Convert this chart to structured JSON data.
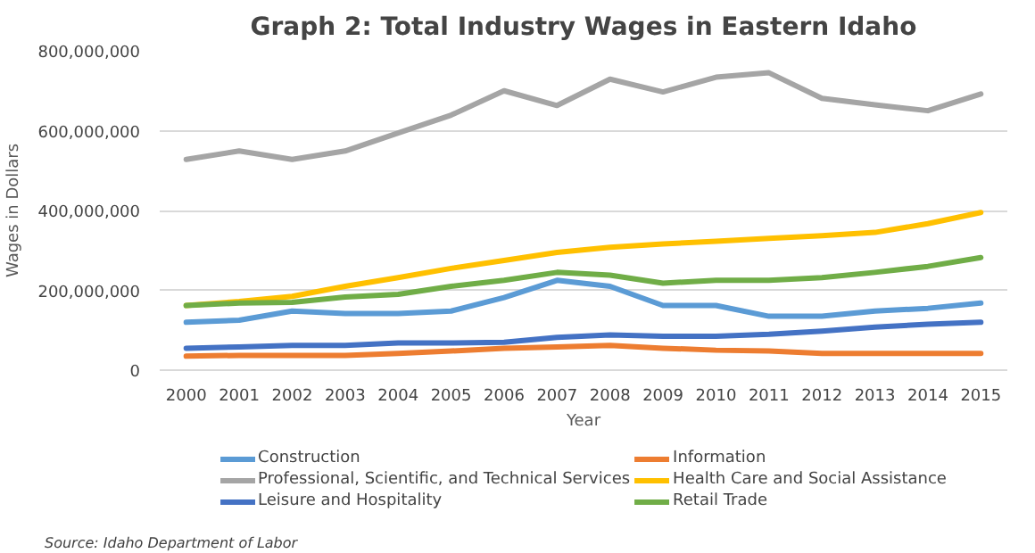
{
  "chart_data": {
    "type": "line",
    "title": "Graph 2: Total Industry Wages in Eastern Idaho",
    "xlabel": "Year",
    "ylabel": "Wages in Dollars",
    "categories": [
      "2000",
      "2001",
      "2002",
      "2003",
      "2004",
      "2005",
      "2006",
      "2007",
      "2008",
      "2009",
      "2010",
      "2011",
      "2012",
      "2013",
      "2014",
      "2015"
    ],
    "series": [
      {
        "name": "Construction",
        "color": "#5b9bd5",
        "values": [
          120000000,
          125000000,
          148000000,
          142000000,
          142000000,
          148000000,
          182000000,
          225000000,
          210000000,
          162000000,
          162000000,
          135000000,
          135000000,
          148000000,
          155000000,
          168000000
        ]
      },
      {
        "name": "Information",
        "color": "#ed7d31",
        "values": [
          35000000,
          37000000,
          37000000,
          37000000,
          42000000,
          48000000,
          55000000,
          58000000,
          62000000,
          55000000,
          50000000,
          48000000,
          42000000,
          42000000,
          42000000,
          42000000
        ]
      },
      {
        "name": "Professional, Scientific, and Technical Services",
        "color": "#a5a5a5",
        "values": [
          528000000,
          549000000,
          528000000,
          549000000,
          594000000,
          639000000,
          700000000,
          663000000,
          729000000,
          697000000,
          734000000,
          745000000,
          681000000,
          665000000,
          650000000,
          692000000
        ]
      },
      {
        "name": "Health Care and Social Assistance",
        "color": "#ffc000",
        "values": [
          162000000,
          172000000,
          185000000,
          210000000,
          232000000,
          255000000,
          275000000,
          295000000,
          308000000,
          316000000,
          323000000,
          330000000,
          337000000,
          345000000,
          367000000,
          395000000
        ]
      },
      {
        "name": "Leisure and Hospitality",
        "color": "#4472c4",
        "values": [
          55000000,
          58000000,
          62000000,
          62000000,
          68000000,
          68000000,
          70000000,
          82000000,
          88000000,
          85000000,
          85000000,
          90000000,
          98000000,
          108000000,
          115000000,
          120000000
        ]
      },
      {
        "name": "Retail Trade",
        "color": "#70ad47",
        "values": [
          162000000,
          168000000,
          170000000,
          183000000,
          190000000,
          210000000,
          225000000,
          245000000,
          238000000,
          218000000,
          225000000,
          225000000,
          232000000,
          245000000,
          260000000,
          282000000
        ]
      }
    ],
    "ylim": [
      0,
      800000000
    ],
    "yticks": [
      {
        "value": 0,
        "label": "0"
      },
      {
        "value": 200000000,
        "label": "200,000,000"
      },
      {
        "value": 400000000,
        "label": "400,000,000"
      },
      {
        "value": 600000000,
        "label": "600,000,000"
      },
      {
        "value": 800000000,
        "label": "800,000,000"
      }
    ],
    "grid": "y",
    "legend": "bottom",
    "marker": "none",
    "line_style": "solid",
    "annotations": [
      "Source: Idaho Department of Labor"
    ]
  }
}
